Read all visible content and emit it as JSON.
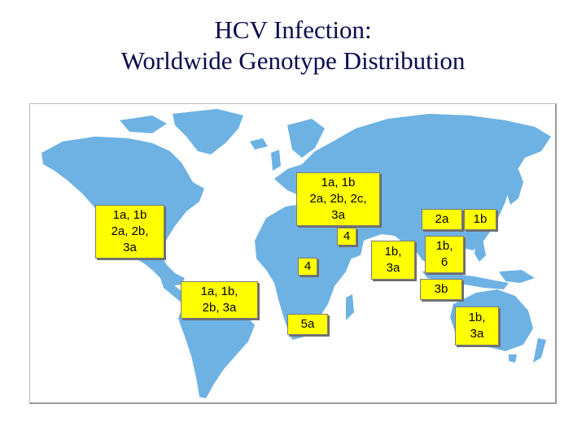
{
  "title": {
    "line1": "HCV Infection:",
    "line2": "Worldwide Genotype Distribution"
  },
  "colors": {
    "land": "#6eb2e4",
    "ocean": "#ffffff",
    "label_fill": "#ffff00",
    "title": "#0a0a50"
  },
  "genotypes": {
    "north_america": "1a, 1b\n2a, 2b,\n3a",
    "europe": "1a, 1b\n2a, 2b, 2c,\n3a",
    "middle_east": "4",
    "north_africa": "4",
    "south_asia": "1b,\n3a",
    "china": "2a",
    "japan": "1b",
    "southeast_asia": "1b,\n6",
    "indonesia": "3b",
    "south_america": "1a, 1b,\n2b, 3a",
    "south_africa": "5a",
    "australia": "1b,\n3a"
  }
}
